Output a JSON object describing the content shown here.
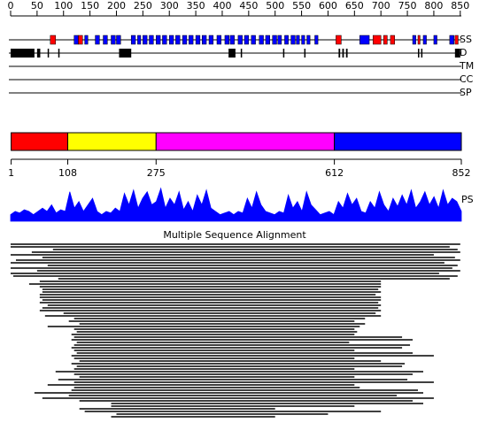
{
  "ruler": {
    "min": 0,
    "max": 852,
    "ticks": [
      0,
      50,
      100,
      150,
      200,
      250,
      300,
      350,
      400,
      450,
      500,
      550,
      600,
      650,
      700,
      750,
      800,
      850
    ]
  },
  "tracks": {
    "ss": {
      "label": "SS",
      "helix_color": "#0000ff",
      "strand_color": "#ff0000",
      "helices": [
        [
          120,
          128
        ],
        [
          140,
          146
        ],
        [
          160,
          168
        ],
        [
          175,
          183
        ],
        [
          190,
          198
        ],
        [
          200,
          208
        ],
        [
          228,
          236
        ],
        [
          240,
          246
        ],
        [
          250,
          258
        ],
        [
          262,
          270
        ],
        [
          275,
          283
        ],
        [
          287,
          295
        ],
        [
          300,
          308
        ],
        [
          312,
          320
        ],
        [
          325,
          333
        ],
        [
          337,
          345
        ],
        [
          350,
          358
        ],
        [
          362,
          370
        ],
        [
          375,
          383
        ],
        [
          390,
          398
        ],
        [
          405,
          413
        ],
        [
          415,
          423
        ],
        [
          430,
          438
        ],
        [
          442,
          450
        ],
        [
          455,
          463
        ],
        [
          470,
          478
        ],
        [
          482,
          490
        ],
        [
          495,
          503
        ],
        [
          505,
          512
        ],
        [
          518,
          525
        ],
        [
          530,
          538
        ],
        [
          540,
          546
        ],
        [
          550,
          556
        ],
        [
          560,
          566
        ],
        [
          575,
          581
        ],
        [
          660,
          678
        ],
        [
          760,
          766
        ],
        [
          780,
          786
        ],
        [
          800,
          806
        ],
        [
          830,
          838
        ]
      ],
      "strands": [
        [
          75,
          85
        ],
        [
          128,
          136
        ],
        [
          615,
          625
        ],
        [
          685,
          700
        ],
        [
          705,
          712
        ],
        [
          718,
          726
        ],
        [
          770,
          774
        ],
        [
          840,
          846
        ]
      ]
    },
    "d": {
      "label": "D",
      "regions": [
        [
          0,
          45
        ],
        [
          50,
          56
        ],
        [
          70,
          72
        ],
        [
          90,
          92
        ],
        [
          205,
          228
        ],
        [
          412,
          425
        ],
        [
          435,
          437
        ],
        [
          515,
          517
        ],
        [
          555,
          557
        ],
        [
          620,
          623
        ],
        [
          627,
          630
        ],
        [
          634,
          637
        ],
        [
          770,
          772
        ],
        [
          776,
          778
        ],
        [
          840,
          850
        ]
      ]
    },
    "tm": {
      "label": "TM"
    },
    "cc": {
      "label": "CC"
    },
    "sp": {
      "label": "SP"
    }
  },
  "domains": {
    "boundaries": [
      1,
      108,
      275,
      612,
      852
    ],
    "colors": [
      "#ff0000",
      "#ffff00",
      "#ff00ff",
      "#0000ff"
    ]
  },
  "ps": {
    "label": "PS",
    "color": "#0000ff",
    "values": [
      0.2,
      0.3,
      0.25,
      0.35,
      0.3,
      0.2,
      0.3,
      0.4,
      0.3,
      0.5,
      0.25,
      0.35,
      0.3,
      0.9,
      0.4,
      0.6,
      0.3,
      0.5,
      0.7,
      0.3,
      0.2,
      0.3,
      0.25,
      0.4,
      0.3,
      0.85,
      0.5,
      0.95,
      0.4,
      0.7,
      0.9,
      0.5,
      0.6,
      1.0,
      0.4,
      0.7,
      0.5,
      0.9,
      0.35,
      0.6,
      0.3,
      0.8,
      0.5,
      0.95,
      0.4,
      0.3,
      0.2,
      0.25,
      0.3,
      0.2,
      0.3,
      0.25,
      0.7,
      0.4,
      0.9,
      0.5,
      0.3,
      0.25,
      0.2,
      0.3,
      0.25,
      0.8,
      0.4,
      0.6,
      0.3,
      0.9,
      0.5,
      0.35,
      0.2,
      0.25,
      0.3,
      0.2,
      0.6,
      0.4,
      0.85,
      0.5,
      0.7,
      0.3,
      0.25,
      0.6,
      0.4,
      0.9,
      0.5,
      0.3,
      0.7,
      0.45,
      0.8,
      0.5,
      0.95,
      0.4,
      0.6,
      0.9,
      0.5,
      0.75,
      0.4,
      0.95,
      0.5,
      0.7,
      0.6,
      0.3
    ]
  },
  "msa": {
    "title": "Multiple Sequence Alignment",
    "alignments": [
      [
        0,
        850
      ],
      [
        0,
        830
      ],
      [
        80,
        845
      ],
      [
        40,
        850
      ],
      [
        0,
        800
      ],
      [
        60,
        840
      ],
      [
        10,
        850
      ],
      [
        0,
        820
      ],
      [
        70,
        845
      ],
      [
        0,
        835
      ],
      [
        50,
        850
      ],
      [
        0,
        810
      ],
      [
        5,
        845
      ],
      [
        90,
        830
      ],
      [
        55,
        700
      ],
      [
        35,
        700
      ],
      [
        55,
        700
      ],
      [
        60,
        695
      ],
      [
        60,
        700
      ],
      [
        55,
        690
      ],
      [
        55,
        700
      ],
      [
        60,
        700
      ],
      [
        55,
        695
      ],
      [
        70,
        700
      ],
      [
        60,
        695
      ],
      [
        55,
        700
      ],
      [
        100,
        690
      ],
      [
        65,
        700
      ],
      [
        120,
        670
      ],
      [
        110,
        650
      ],
      [
        130,
        670
      ],
      [
        70,
        660
      ],
      [
        120,
        650
      ],
      [
        125,
        655
      ],
      [
        115,
        650
      ],
      [
        120,
        740
      ],
      [
        115,
        760
      ],
      [
        125,
        640
      ],
      [
        120,
        755
      ],
      [
        115,
        740
      ],
      [
        120,
        650
      ],
      [
        125,
        760
      ],
      [
        115,
        800
      ],
      [
        120,
        650
      ],
      [
        130,
        700
      ],
      [
        115,
        745
      ],
      [
        125,
        740
      ],
      [
        120,
        650
      ],
      [
        85,
        780
      ],
      [
        120,
        760
      ],
      [
        130,
        650
      ],
      [
        90,
        750
      ],
      [
        120,
        800
      ],
      [
        70,
        650
      ],
      [
        120,
        660
      ],
      [
        115,
        770
      ],
      [
        45,
        780
      ],
      [
        110,
        730
      ],
      [
        60,
        800
      ],
      [
        130,
        760
      ],
      [
        190,
        780
      ],
      [
        190,
        650
      ],
      [
        130,
        500
      ],
      [
        140,
        700
      ],
      [
        200,
        600
      ],
      [
        190,
        500
      ]
    ]
  }
}
